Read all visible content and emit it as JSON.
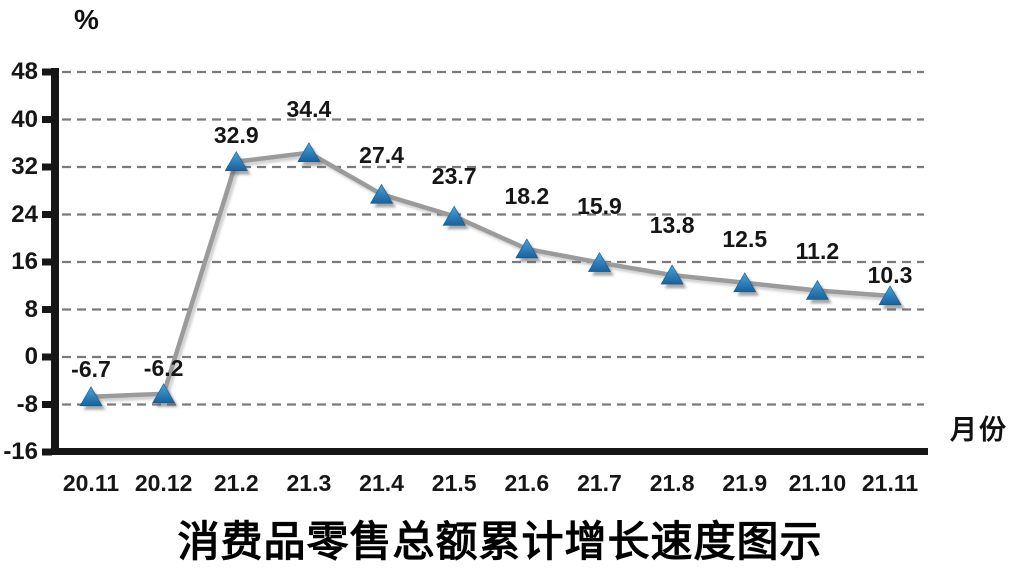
{
  "chart": {
    "title": "消费品零售总额累计增长速度图示",
    "y_unit": "%",
    "x_unit": "月份"
  },
  "chart_data": {
    "type": "line",
    "title": "消费品零售总额累计增长速度图示",
    "ylabel": "%",
    "xlabel": "月份",
    "categories": [
      "20.11",
      "20.12",
      "21.2",
      "21.3",
      "21.4",
      "21.5",
      "21.6",
      "21.7",
      "21.8",
      "21.9",
      "21.10",
      "21.11"
    ],
    "values": [
      -6.7,
      -6.2,
      32.9,
      34.4,
      27.4,
      23.7,
      18.2,
      15.9,
      13.8,
      12.5,
      11.2,
      10.3
    ],
    "data_labels": [
      "-6.7",
      "-6.2",
      "32.9",
      "34.4",
      "27.4",
      "23.7",
      "18.2",
      "15.9",
      "13.8",
      "12.5",
      "11.2",
      "10.3"
    ],
    "y_ticks": [
      48,
      40,
      32,
      24,
      16,
      8,
      0,
      -8,
      -16
    ],
    "ylim": [
      -16,
      48
    ],
    "grid": "dashed-horizontal",
    "legend": "none",
    "marker": "triangle",
    "colors": {
      "line": "#9b9b9b",
      "marker_top": "#4ba2d9",
      "marker_bottom": "#16629e",
      "marker_shadow": "rgba(95,95,95,0.55)",
      "gridline": "#7a7a7a",
      "axis": "#161616",
      "text": "#161616"
    },
    "label_offsets": [
      28,
      26,
      27,
      44,
      39,
      40,
      53,
      57,
      50,
      44,
      40,
      21
    ]
  }
}
